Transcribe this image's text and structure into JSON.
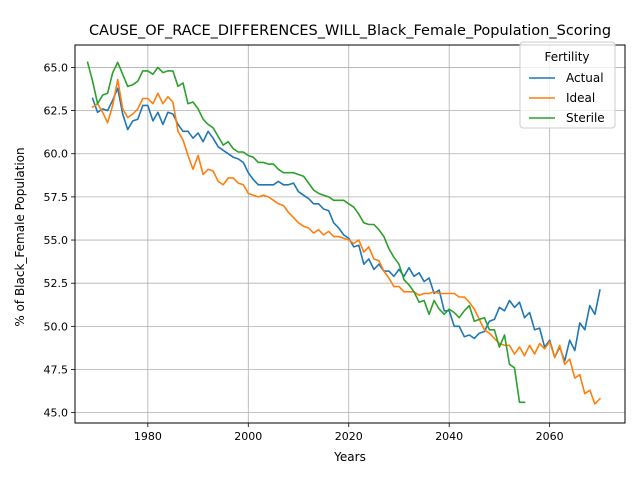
{
  "chart_data": {
    "type": "line",
    "title": "CAUSE_OF_RACE_DIFFERENCES_WILL_Black_Female_Population_Scoring",
    "xlabel": "Years",
    "ylabel": "% of Black_Female Population",
    "xlim": [
      1965.5,
      2075
    ],
    "ylim": [
      44.4,
      66.3
    ],
    "xticks": [
      1980,
      2000,
      2020,
      2040,
      2060
    ],
    "xtick_labels": [
      "1980",
      "2000",
      "2020",
      "2040",
      "2060"
    ],
    "yticks": [
      45.0,
      47.5,
      50.0,
      52.5,
      55.0,
      57.5,
      60.0,
      62.5,
      65.0
    ],
    "ytick_labels": [
      "45.0",
      "47.5",
      "50.0",
      "52.5",
      "55.0",
      "57.5",
      "60.0",
      "62.5",
      "65.0"
    ],
    "grid": true,
    "legend": {
      "title": "Fertility",
      "placement": "top-right"
    },
    "series": [
      {
        "name": "Actual",
        "color": "#1f77b4",
        "x": [
          1969,
          1970,
          1971,
          1972,
          1973,
          1974,
          1975,
          1976,
          1977,
          1978,
          1979,
          1980,
          1981,
          1982,
          1983,
          1984,
          1985,
          1986,
          1987,
          1988,
          1989,
          1990,
          1991,
          1992,
          1993,
          1994,
          1995,
          1996,
          1997,
          1998,
          1999,
          2000,
          2001,
          2002,
          2003,
          2004,
          2005,
          2006,
          2007,
          2008,
          2009,
          2010,
          2011,
          2012,
          2013,
          2014,
          2015,
          2016,
          2017,
          2018,
          2019,
          2020,
          2021,
          2022,
          2023,
          2024,
          2025,
          2026,
          2027,
          2028,
          2029,
          2030,
          2031,
          2032,
          2033,
          2034,
          2035,
          2036,
          2037,
          2038,
          2039,
          2040,
          2041,
          2042,
          2043,
          2044,
          2045,
          2046,
          2047,
          2048,
          2049,
          2050,
          2051,
          2052,
          2053,
          2054,
          2055,
          2056,
          2057,
          2058,
          2059,
          2060,
          2061,
          2062,
          2063,
          2064,
          2065,
          2066,
          2067,
          2068,
          2069,
          2070
        ],
        "values": [
          63.2,
          62.4,
          62.6,
          62.5,
          63.1,
          63.8,
          62.3,
          61.4,
          61.9,
          62.0,
          62.8,
          62.8,
          61.9,
          62.4,
          61.7,
          62.4,
          62.3,
          61.7,
          61.3,
          61.3,
          60.9,
          61.2,
          60.7,
          61.3,
          60.9,
          60.4,
          60.2,
          60.0,
          59.8,
          59.7,
          59.5,
          58.9,
          58.5,
          58.2,
          58.2,
          58.2,
          58.2,
          58.4,
          58.2,
          58.2,
          58.3,
          57.8,
          57.6,
          57.4,
          57.1,
          57.1,
          56.8,
          56.7,
          56.0,
          55.7,
          55.3,
          55.1,
          54.6,
          54.7,
          53.6,
          53.9,
          53.3,
          53.6,
          53.2,
          53.2,
          52.9,
          53.3,
          52.9,
          53.4,
          52.9,
          53.1,
          52.6,
          52.8,
          51.9,
          52.1,
          50.9,
          50.9,
          50.0,
          50.0,
          49.4,
          49.5,
          49.3,
          49.6,
          49.7,
          50.3,
          50.4,
          51.1,
          50.9,
          51.5,
          51.1,
          51.4,
          50.5,
          50.8,
          49.8,
          49.9,
          48.8,
          49.2,
          48.2,
          48.8,
          48.0,
          49.2,
          48.6,
          50.2,
          49.8,
          51.2,
          50.7,
          52.1
        ]
      },
      {
        "name": "Ideal",
        "color": "#ff7f0e",
        "x": [
          1969,
          1970,
          1971,
          1972,
          1973,
          1974,
          1975,
          1976,
          1977,
          1978,
          1979,
          1980,
          1981,
          1982,
          1983,
          1984,
          1985,
          1986,
          1987,
          1988,
          1989,
          1990,
          1991,
          1992,
          1993,
          1994,
          1995,
          1996,
          1997,
          1998,
          1999,
          2000,
          2001,
          2002,
          2003,
          2004,
          2005,
          2006,
          2007,
          2008,
          2009,
          2010,
          2011,
          2012,
          2013,
          2014,
          2015,
          2016,
          2017,
          2018,
          2019,
          2020,
          2021,
          2022,
          2023,
          2024,
          2025,
          2026,
          2027,
          2028,
          2029,
          2030,
          2031,
          2032,
          2033,
          2034,
          2035,
          2036,
          2037,
          2038,
          2039,
          2040,
          2041,
          2042,
          2043,
          2044,
          2045,
          2046,
          2047,
          2048,
          2049,
          2050,
          2051,
          2052,
          2053,
          2054,
          2055,
          2056,
          2057,
          2058,
          2059,
          2060,
          2061,
          2062,
          2063,
          2064,
          2065,
          2066,
          2067,
          2068,
          2069,
          2070
        ],
        "values": [
          62.7,
          62.9,
          62.4,
          61.8,
          62.8,
          64.3,
          62.6,
          62.1,
          62.3,
          62.6,
          63.2,
          63.2,
          62.9,
          63.5,
          62.9,
          63.3,
          63.0,
          61.3,
          60.8,
          59.9,
          59.1,
          59.9,
          58.8,
          59.1,
          59.0,
          58.4,
          58.2,
          58.6,
          58.6,
          58.3,
          58.2,
          57.7,
          57.6,
          57.5,
          57.6,
          57.5,
          57.3,
          57.1,
          57.0,
          56.6,
          56.3,
          56.0,
          55.8,
          55.7,
          55.4,
          55.6,
          55.3,
          55.5,
          55.2,
          55.2,
          55.1,
          55.0,
          54.8,
          55.0,
          54.3,
          54.6,
          53.9,
          53.8,
          53.2,
          52.8,
          52.3,
          52.3,
          52.0,
          52.0,
          52.0,
          51.8,
          51.9,
          51.9,
          52.0,
          51.9,
          51.9,
          51.9,
          51.9,
          51.7,
          51.7,
          51.4,
          51.0,
          50.4,
          49.8,
          49.6,
          49.3,
          49.0,
          48.9,
          48.9,
          48.4,
          48.8,
          48.3,
          48.9,
          48.4,
          49.0,
          48.7,
          49.1,
          48.2,
          48.9,
          47.8,
          48.1,
          47.0,
          47.2,
          46.1,
          46.3,
          45.5,
          45.8
        ]
      },
      {
        "name": "Sterile",
        "color": "#2ca02c",
        "x": [
          1968,
          1969,
          1970,
          1971,
          1972,
          1973,
          1974,
          1975,
          1976,
          1977,
          1978,
          1979,
          1980,
          1981,
          1982,
          1983,
          1984,
          1985,
          1986,
          1987,
          1988,
          1989,
          1990,
          1991,
          1992,
          1993,
          1994,
          1995,
          1996,
          1997,
          1998,
          1999,
          2000,
          2001,
          2002,
          2003,
          2004,
          2005,
          2006,
          2007,
          2008,
          2009,
          2010,
          2011,
          2012,
          2013,
          2014,
          2015,
          2016,
          2017,
          2018,
          2019,
          2020,
          2021,
          2022,
          2023,
          2024,
          2025,
          2026,
          2027,
          2028,
          2029,
          2030,
          2031,
          2032,
          2033,
          2034,
          2035,
          2036,
          2037,
          2038,
          2039,
          2040,
          2041,
          2042,
          2043,
          2044,
          2045,
          2046,
          2047,
          2048,
          2049,
          2050,
          2051,
          2052,
          2053,
          2054,
          2055
        ],
        "values": [
          65.3,
          64.2,
          62.9,
          63.4,
          63.5,
          64.7,
          65.3,
          64.6,
          63.9,
          64.0,
          64.2,
          64.8,
          64.8,
          64.6,
          65.0,
          64.7,
          64.8,
          64.8,
          63.9,
          64.1,
          62.9,
          63.0,
          62.6,
          62.0,
          61.7,
          61.5,
          61.0,
          60.5,
          60.7,
          60.3,
          60.1,
          60.1,
          59.9,
          59.8,
          59.5,
          59.5,
          59.4,
          59.4,
          59.1,
          58.9,
          58.9,
          58.9,
          58.8,
          58.7,
          58.3,
          57.9,
          57.7,
          57.6,
          57.5,
          57.3,
          57.3,
          57.3,
          57.1,
          56.9,
          56.5,
          56.0,
          55.9,
          55.9,
          55.6,
          55.2,
          54.5,
          54.0,
          53.6,
          52.7,
          52.4,
          52.0,
          51.4,
          51.5,
          50.7,
          51.5,
          51.0,
          50.7,
          51.0,
          50.8,
          50.5,
          50.9,
          51.2,
          50.3,
          50.4,
          50.5,
          49.8,
          49.8,
          48.8,
          49.5,
          47.8,
          47.6,
          45.6,
          45.6
        ]
      }
    ]
  }
}
